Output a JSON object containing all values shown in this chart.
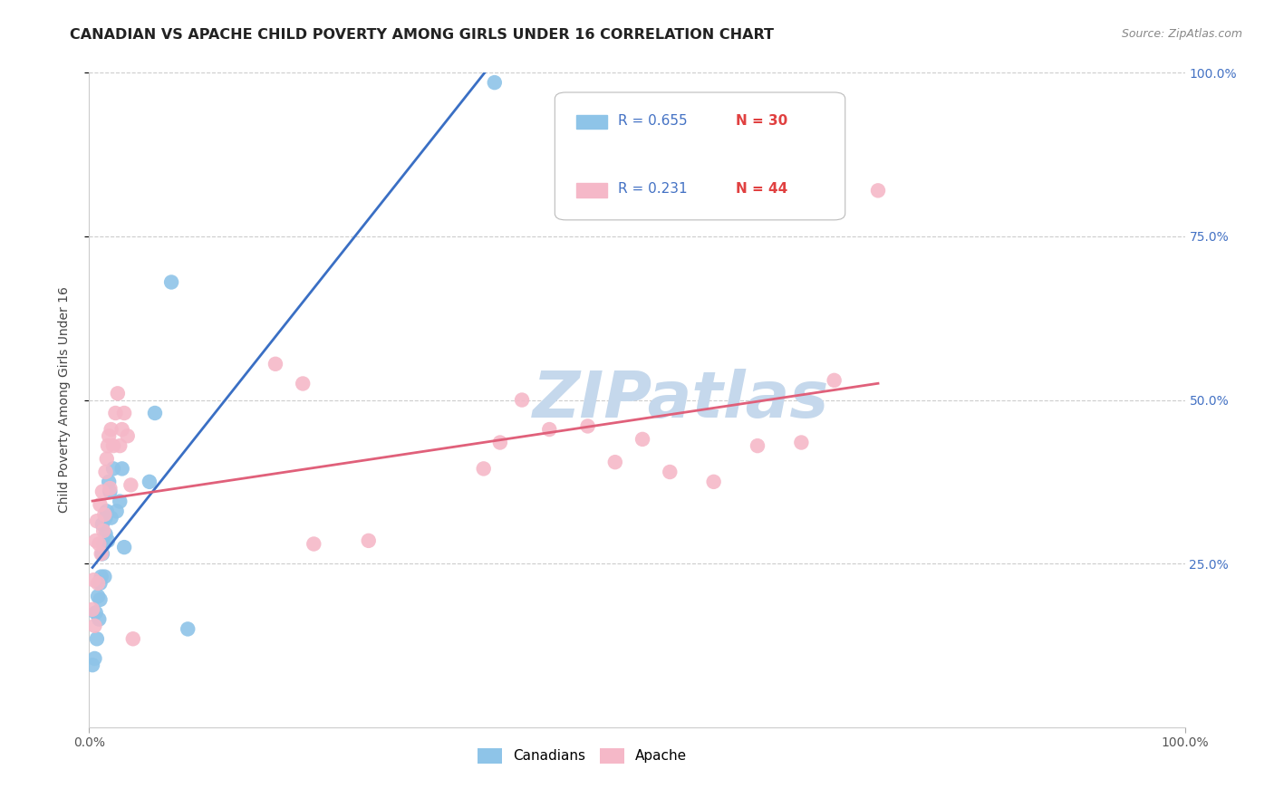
{
  "title": "CANADIAN VS APACHE CHILD POVERTY AMONG GIRLS UNDER 16 CORRELATION CHART",
  "source": "Source: ZipAtlas.com",
  "ylabel": "Child Poverty Among Girls Under 16",
  "xlim": [
    0,
    1.0
  ],
  "ylim": [
    0,
    1.0
  ],
  "ytick_labels": [
    "25.0%",
    "50.0%",
    "75.0%",
    "100.0%"
  ],
  "ytick_positions": [
    0.25,
    0.5,
    0.75,
    1.0
  ],
  "watermark": "ZIPatlas",
  "legend_r1": "R = 0.655",
  "legend_n1": "N = 30",
  "legend_r2": "R = 0.231",
  "legend_n2": "N = 44",
  "canadians_color": "#8ec4e8",
  "apache_color": "#f5b8c8",
  "trendline_canadian_color": "#3a6fc4",
  "trendline_apache_color": "#e0607a",
  "canadians_x": [
    0.003,
    0.005,
    0.006,
    0.007,
    0.008,
    0.009,
    0.01,
    0.01,
    0.011,
    0.012,
    0.012,
    0.013,
    0.014,
    0.015,
    0.015,
    0.016,
    0.017,
    0.018,
    0.019,
    0.02,
    0.022,
    0.025,
    0.028,
    0.03,
    0.032,
    0.055,
    0.06,
    0.075,
    0.09,
    0.37
  ],
  "canadians_y": [
    0.095,
    0.105,
    0.175,
    0.135,
    0.2,
    0.165,
    0.195,
    0.22,
    0.23,
    0.265,
    0.31,
    0.28,
    0.23,
    0.295,
    0.32,
    0.33,
    0.285,
    0.375,
    0.36,
    0.32,
    0.395,
    0.33,
    0.345,
    0.395,
    0.275,
    0.375,
    0.48,
    0.68,
    0.15,
    0.985
  ],
  "apache_x": [
    0.003,
    0.004,
    0.005,
    0.006,
    0.007,
    0.008,
    0.009,
    0.01,
    0.011,
    0.012,
    0.013,
    0.014,
    0.015,
    0.016,
    0.017,
    0.018,
    0.019,
    0.02,
    0.022,
    0.024,
    0.026,
    0.028,
    0.03,
    0.032,
    0.035,
    0.038,
    0.04,
    0.17,
    0.195,
    0.205,
    0.255,
    0.36,
    0.375,
    0.395,
    0.42,
    0.455,
    0.48,
    0.505,
    0.53,
    0.57,
    0.61,
    0.65,
    0.68,
    0.72
  ],
  "apache_y": [
    0.18,
    0.225,
    0.155,
    0.285,
    0.315,
    0.22,
    0.28,
    0.34,
    0.265,
    0.36,
    0.3,
    0.325,
    0.39,
    0.41,
    0.43,
    0.445,
    0.365,
    0.455,
    0.43,
    0.48,
    0.51,
    0.43,
    0.455,
    0.48,
    0.445,
    0.37,
    0.135,
    0.555,
    0.525,
    0.28,
    0.285,
    0.395,
    0.435,
    0.5,
    0.455,
    0.46,
    0.405,
    0.44,
    0.39,
    0.375,
    0.43,
    0.435,
    0.53,
    0.82
  ],
  "background_color": "#ffffff",
  "grid_color": "#cccccc",
  "title_fontsize": 11.5,
  "label_fontsize": 10,
  "tick_fontsize": 10,
  "source_fontsize": 9,
  "watermark_color": "#c5d8ec",
  "watermark_fontsize": 52,
  "trendline_canadian_start_x": 0.003,
  "trendline_canadian_end_x": 0.37,
  "trendline_apache_start_x": 0.003,
  "trendline_apache_end_x": 0.72
}
